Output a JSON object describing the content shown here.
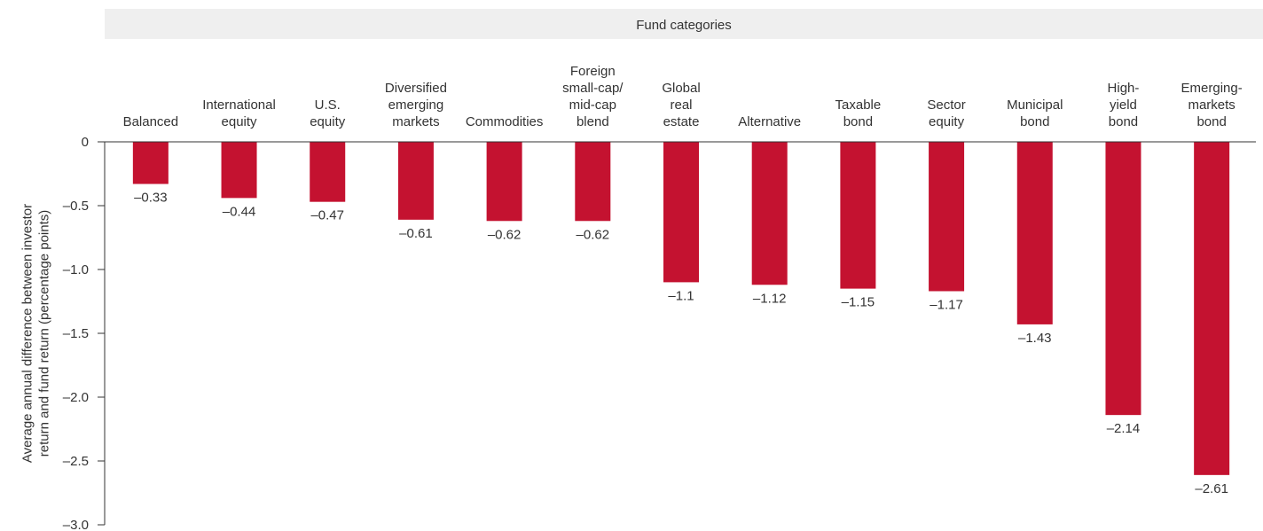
{
  "chart_data": {
    "type": "bar",
    "header": "Fund categories",
    "y_label": "Average annual difference between investor\nreturn and fund return (percentage points)",
    "categories": [
      "Balanced",
      "International\nequity",
      "U.S.\nequity",
      "Diversified\nemerging\nmarkets",
      "Commodities",
      "Foreign\nsmall-cap/\nmid-cap\nblend",
      "Global\nreal\nestate",
      "Alternative",
      "Taxable\nbond",
      "Sector\nequity",
      "Municipal\nbond",
      "High-\nyield\nbond",
      "Emerging-\nmarkets\nbond"
    ],
    "values": [
      -0.33,
      -0.44,
      -0.47,
      -0.61,
      -0.62,
      -0.62,
      -1.1,
      -1.12,
      -1.15,
      -1.17,
      -1.43,
      -2.14,
      -2.61
    ],
    "value_labels": [
      "–0.33",
      "–0.44",
      "–0.47",
      "–0.61",
      "–0.62",
      "–0.62",
      "–1.1",
      "–1.12",
      "–1.15",
      "–1.17",
      "–1.43",
      "–2.14",
      "–2.61"
    ],
    "color": "#c41230",
    "ylim": [
      -3.0,
      0
    ],
    "yticks": [
      0,
      {
        "value": -0.5,
        "label": "–0.5"
      },
      {
        "value": -1.0,
        "label": "–1.0"
      },
      {
        "value": -1.5,
        "label": "–1.5"
      },
      {
        "value": -2.0,
        "label": "–2.0"
      },
      {
        "value": -2.5,
        "label": "–2.5"
      },
      {
        "value": -3.0,
        "label": "–3.0"
      }
    ]
  }
}
